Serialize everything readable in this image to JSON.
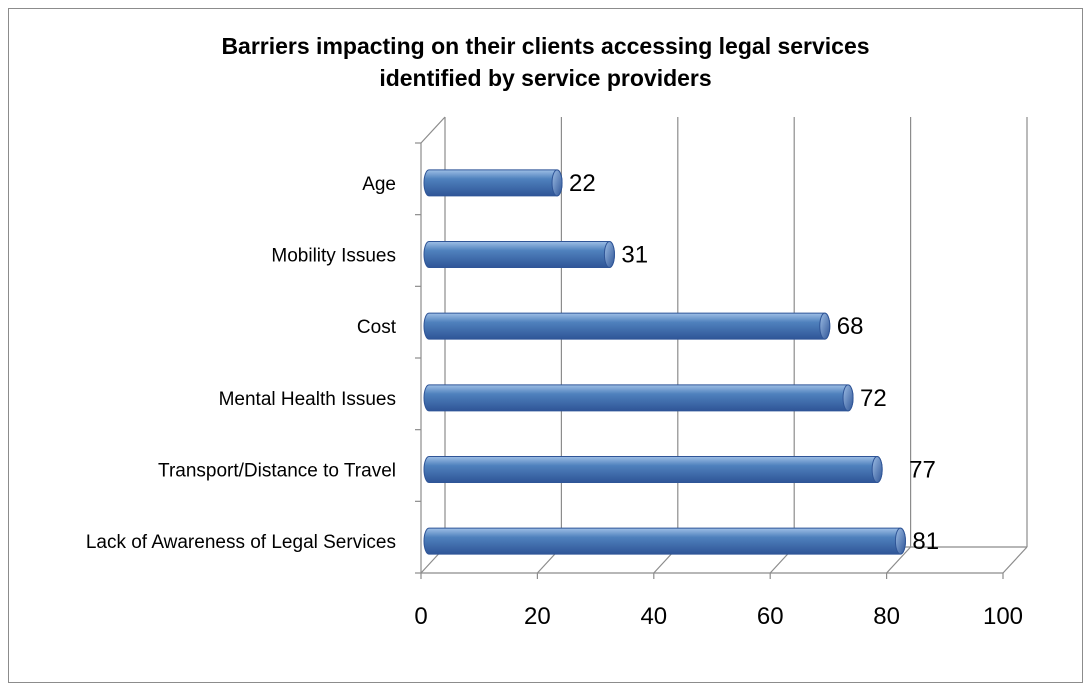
{
  "chart_data": {
    "type": "bar",
    "orientation": "horizontal",
    "style": "3d-cylinder",
    "title_lines": [
      "Barriers impacting on their clients accessing legal services",
      "identified by service providers"
    ],
    "categories": [
      "Age",
      "Mobility Issues",
      "Cost",
      "Mental Health Issues",
      "Transport/Distance to Travel",
      "Lack of Awareness of Legal Services"
    ],
    "values": [
      22,
      31,
      68,
      72,
      77,
      81
    ],
    "data_labels": [
      "22",
      "31",
      "68",
      "72",
      "77",
      "81"
    ],
    "xlim": [
      0,
      100
    ],
    "xticks": [
      0,
      20,
      40,
      60,
      80,
      100
    ],
    "xtick_labels": [
      "0",
      "20",
      "40",
      "60",
      "80",
      "100"
    ],
    "xlabel": "",
    "ylabel": "",
    "grid": "vertical",
    "legend": "none",
    "colors": {
      "bar": "#4f81bd",
      "bar_dark": "#2f5597",
      "bar_light": "#9fbfe6",
      "grid": "#8c8c8c",
      "axis": "#8c8c8c"
    }
  }
}
